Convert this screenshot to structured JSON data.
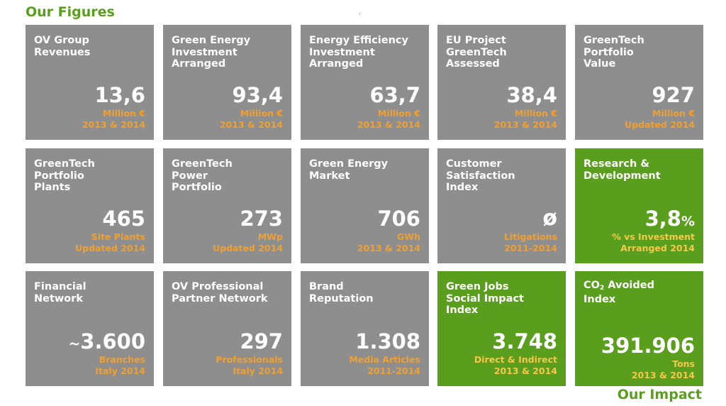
{
  "header": {
    "title": "Our Figures"
  },
  "footer": {
    "title": "Our Impact"
  },
  "tiles": [
    {
      "label": "OV Group\nRevenues",
      "value": "13,6",
      "unit": "Million €",
      "period": "2013 & 2014"
    },
    {
      "label": "Green Energy\nInvestment\nArranged",
      "value": "93,4",
      "unit": "Million €",
      "period": "2013 & 2014"
    },
    {
      "label": "Energy Efficiency\nInvestment\nArranged",
      "value": "63,7",
      "unit": "Million €",
      "period": "2013 & 2014"
    },
    {
      "label": "EU Project\nGreenTech\nAssessed",
      "value": "38,4",
      "unit": "Million €",
      "period": "2013 & 2014"
    },
    {
      "label": "GreenTech\nPortfolio\nValue",
      "value": "927",
      "unit": "Million €",
      "period": "Updated 2014"
    },
    {
      "label": "GreenTech\nPortfolio\nPlants",
      "value": "465",
      "unit": "Site Plants",
      "period": "Updated 2014"
    },
    {
      "label": "GreenTech\nPower\nPortfolio",
      "value": "273",
      "unit": "MWp",
      "period": "Updated 2014"
    },
    {
      "label": "Green Energy\nMarket",
      "value": "706",
      "unit": "GWh",
      "period": "2013 & 2014"
    },
    {
      "label": "Customer\nSatisfaction\nIndex",
      "value": "ø",
      "unit": "Litigations",
      "period": "2011-2014"
    },
    {
      "label": "Research &\nDevelopment",
      "value": "3,8",
      "value_suffix": "%",
      "unit": "% vs Investment",
      "period": "Arranged 2014"
    },
    {
      "label": "Financial\nNetwork",
      "value_prefix": "~",
      "value": "3.600",
      "unit": "Branches",
      "period": "Italy 2014"
    },
    {
      "label": "OV Professional\nPartner Network",
      "value": "297",
      "unit": "Professionals",
      "period": "Italy 2014"
    },
    {
      "label": "Brand\nReputation",
      "value": "1.308",
      "unit": "Media Articles",
      "period": "2011-2014"
    },
    {
      "label": "Green Jobs\nSocial Impact\nIndex",
      "value": "3.748",
      "unit": "Direct & Indirect",
      "period": "2013 & 2014"
    },
    {
      "label_pre": "CO",
      "label_sub": "2",
      "label_post": " Avoided\nIndex",
      "value": "391.906",
      "unit": "Tons",
      "period": "2013 & 2014"
    }
  ],
  "colors": {
    "tile_grey": "#8e8e8e",
    "tile_green": "#5a9e1e",
    "accent_orange": "#f0a030",
    "title_green": "#5a9e1e"
  }
}
